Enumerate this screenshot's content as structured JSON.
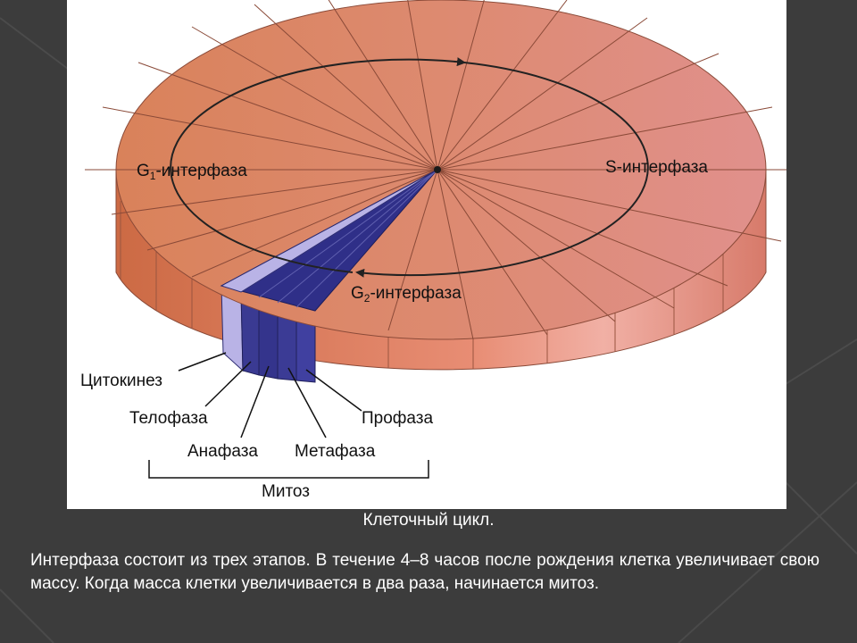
{
  "diagram": {
    "g1_prefix": "G",
    "g1_sub": "1",
    "g1_suffix": "-интерфаза",
    "s_label": "S-интерфаза",
    "g2_prefix": "G",
    "g2_sub": "2",
    "g2_suffix": "-интерфаза",
    "cytokinesis": "Цитокинез",
    "telophase": "Телофаза",
    "anaphase": "Анафаза",
    "metaphase": "Метафаза",
    "prophase": "Профаза",
    "mitosis": "Митоз"
  },
  "slide": {
    "caption": "Клеточный цикл.",
    "description": "Интерфаза состоит из трех этапов. В течение 4–8 часов после рождения клетка увеличивает свою массу. Когда масса клетки увеличивается в два раза, начинается митоз."
  },
  "colors": {
    "slide_bg": "#3c3c3c",
    "disk_warm": "#d9825a",
    "disk_pink": "#df8b86",
    "mitosis_blue": "#2f2f88",
    "cytokinesis_lavender": "#b9b3e6"
  }
}
